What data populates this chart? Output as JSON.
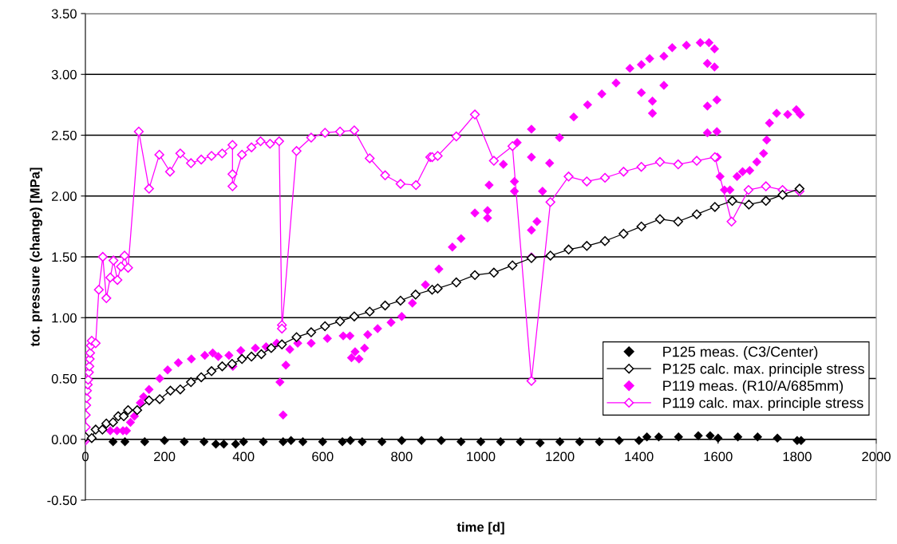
{
  "chart_data": {
    "type": "scatter",
    "xlabel": "time [d]",
    "ylabel": "tot. pressure (change) [MPa]",
    "xlim": [
      0,
      2000
    ],
    "xticks": [
      0,
      200,
      400,
      600,
      800,
      1000,
      1200,
      1400,
      1600,
      1800,
      2000
    ],
    "ylim": [
      -0.5,
      3.5
    ],
    "yticks": [
      {
        "value": -0.5,
        "label": "-0.50"
      },
      {
        "value": 0,
        "label": "0.00"
      },
      {
        "value": 0.5,
        "label": "0.50"
      },
      {
        "value": 1,
        "label": "1.00"
      },
      {
        "value": 1.5,
        "label": "1.50"
      },
      {
        "value": 2,
        "label": "2.00"
      },
      {
        "value": 2.5,
        "label": "2.50"
      },
      {
        "value": 3,
        "label": "3.00"
      },
      {
        "value": 3.5,
        "label": "3.50"
      }
    ],
    "grid": "y",
    "legend": "bottom right",
    "marker": "diamond",
    "series": [
      {
        "name": "P125 meas. (C3/Center)",
        "color": "#000000",
        "x": [
          70,
          100,
          150,
          200,
          250,
          300,
          330,
          350,
          380,
          400,
          450,
          500,
          520,
          550,
          600,
          650,
          670,
          700,
          750,
          800,
          850,
          900,
          950,
          1000,
          1050,
          1100,
          1150,
          1200,
          1250,
          1300,
          1350,
          1400,
          1420,
          1450,
          1500,
          1550,
          1580,
          1600,
          1650,
          1700,
          1750,
          1800,
          1810
        ],
        "values": [
          -0.02,
          -0.02,
          -0.02,
          -0.01,
          -0.02,
          -0.02,
          -0.04,
          -0.04,
          -0.04,
          -0.02,
          -0.02,
          -0.02,
          -0.01,
          -0.02,
          -0.02,
          -0.02,
          -0.01,
          -0.02,
          -0.02,
          -0.01,
          -0.01,
          -0.01,
          -0.02,
          -0.02,
          -0.02,
          -0.02,
          -0.03,
          -0.02,
          -0.02,
          -0.02,
          -0.01,
          -0.01,
          0.02,
          0.02,
          0.02,
          0.03,
          0.03,
          0.01,
          0.02,
          0.02,
          0.01,
          -0.01,
          -0.01
        ]
      },
      {
        "name": "P125 calc. max. principle stress",
        "type": "line",
        "color": "#000000",
        "x": [
          0,
          16,
          26,
          43,
          53,
          70,
          83,
          97,
          108,
          131,
          161,
          188,
          215,
          240,
          267,
          293,
          319,
          346,
          371,
          396,
          420,
          445,
          470,
          497,
          534,
          571,
          606,
          644,
          680,
          719,
          758,
          797,
          835,
          877,
          891,
          938,
          985,
          1033,
          1080,
          1128,
          1176,
          1222,
          1268,
          1314,
          1361,
          1406,
          1453,
          1499,
          1546,
          1592,
          1636,
          1678,
          1721,
          1763,
          1806
        ],
        "values": [
          0.02,
          0.01,
          0.08,
          0.08,
          0.13,
          0.14,
          0.19,
          0.19,
          0.24,
          0.24,
          0.32,
          0.33,
          0.4,
          0.41,
          0.47,
          0.51,
          0.56,
          0.6,
          0.62,
          0.66,
          0.68,
          0.7,
          0.75,
          0.78,
          0.84,
          0.88,
          0.93,
          0.97,
          1.01,
          1.05,
          1.1,
          1.14,
          1.19,
          1.23,
          1.24,
          1.29,
          1.35,
          1.37,
          1.43,
          1.49,
          1.51,
          1.56,
          1.59,
          1.63,
          1.69,
          1.75,
          1.81,
          1.79,
          1.85,
          1.91,
          1.96,
          1.93,
          1.96,
          2.01,
          2.06
        ]
      },
      {
        "name": "P119 meas. (R10/A/685mm)",
        "color": "#ff00ff",
        "x": [
          63,
          80,
          95,
          104,
          114,
          124,
          139,
          147,
          161,
          188,
          208,
          235,
          268,
          302,
          322,
          336,
          363,
          373,
          393,
          430,
          457,
          484,
          492,
          500,
          507,
          517,
          537,
          571,
          612,
          652,
          669,
          673,
          682,
          692,
          706,
          714,
          739,
          773,
          800,
          827,
          860,
          894,
          928,
          950,
          985,
          1017,
          1017,
          1021,
          1057,
          1085,
          1085,
          1092,
          1128,
          1128,
          1128,
          1128,
          1142,
          1156,
          1174,
          1199,
          1235,
          1270,
          1306,
          1342,
          1377,
          1406,
          1406,
          1427,
          1434,
          1434,
          1463,
          1463,
          1484,
          1520,
          1555,
          1573,
          1573,
          1573,
          1577,
          1591,
          1591,
          1597,
          1597,
          1598,
          1605,
          1616,
          1630,
          1648,
          1662,
          1680,
          1698,
          1715,
          1723,
          1730,
          1748,
          1776,
          1798,
          1808
        ],
        "values": [
          0.07,
          0.07,
          0.07,
          0.07,
          0.14,
          0.19,
          0.3,
          0.35,
          0.41,
          0.5,
          0.57,
          0.63,
          0.66,
          0.69,
          0.71,
          0.68,
          0.69,
          0.6,
          0.73,
          0.75,
          0.76,
          0.79,
          0.47,
          0.2,
          0.61,
          0.74,
          0.79,
          0.79,
          0.83,
          0.85,
          0.85,
          0.67,
          0.72,
          0.66,
          0.75,
          0.86,
          0.91,
          0.96,
          1.01,
          1.12,
          1.27,
          1.4,
          1.58,
          1.65,
          1.86,
          1.82,
          1.88,
          2.09,
          2.26,
          2.04,
          2.12,
          2.44,
          2.55,
          2.32,
          1.72,
          1.5,
          1.79,
          2.04,
          2.27,
          2.48,
          2.65,
          2.75,
          2.84,
          2.93,
          3.05,
          3.08,
          2.85,
          3.13,
          2.78,
          2.68,
          3.15,
          2.91,
          3.22,
          3.24,
          3.26,
          3.09,
          2.74,
          2.52,
          3.26,
          3.21,
          3.06,
          2.79,
          2.53,
          2.32,
          2.16,
          2.05,
          2.05,
          2.16,
          2.2,
          2.21,
          2.28,
          2.35,
          2.46,
          2.6,
          2.68,
          2.67,
          2.71,
          2.67
        ]
      },
      {
        "name": "P119 calc. max. principle stress",
        "type": "line",
        "color": "#ff00ff",
        "x": [
          0,
          0,
          1,
          1,
          2,
          3,
          4,
          6,
          7,
          9,
          10,
          11,
          12,
          14,
          16,
          26,
          34,
          44,
          53,
          63,
          71,
          81,
          90,
          99,
          108,
          135,
          161,
          187,
          214,
          240,
          267,
          293,
          319,
          346,
          372,
          372,
          372,
          396,
          420,
          443,
          467,
          490,
          497,
          497,
          534,
          571,
          606,
          644,
          680,
          719,
          758,
          797,
          836,
          872,
          877,
          891,
          938,
          985,
          1033,
          1080,
          1128,
          1176,
          1222,
          1268,
          1314,
          1361,
          1406,
          1453,
          1499,
          1546,
          1592,
          1634,
          1677,
          1721,
          1763,
          1806
        ],
        "values": [
          -0.01,
          0.01,
          0.1,
          0.2,
          0.28,
          0.34,
          0.4,
          0.45,
          0.49,
          0.55,
          0.6,
          0.66,
          0.71,
          0.77,
          0.81,
          0.79,
          1.23,
          1.5,
          1.16,
          1.33,
          1.47,
          1.31,
          1.42,
          1.51,
          1.41,
          2.53,
          2.06,
          2.34,
          2.2,
          2.35,
          2.27,
          2.3,
          2.33,
          2.35,
          2.42,
          2.18,
          2.08,
          2.34,
          2.4,
          2.45,
          2.43,
          2.45,
          0.94,
          0.91,
          2.37,
          2.48,
          2.52,
          2.53,
          2.54,
          2.31,
          2.17,
          2.1,
          2.09,
          2.32,
          2.32,
          2.33,
          2.49,
          2.67,
          2.29,
          2.41,
          0.48,
          1.95,
          2.16,
          2.12,
          2.15,
          2.2,
          2.24,
          2.28,
          2.26,
          2.29,
          2.32,
          1.79,
          2.05,
          2.08,
          2.05,
          2.04
        ]
      }
    ]
  }
}
